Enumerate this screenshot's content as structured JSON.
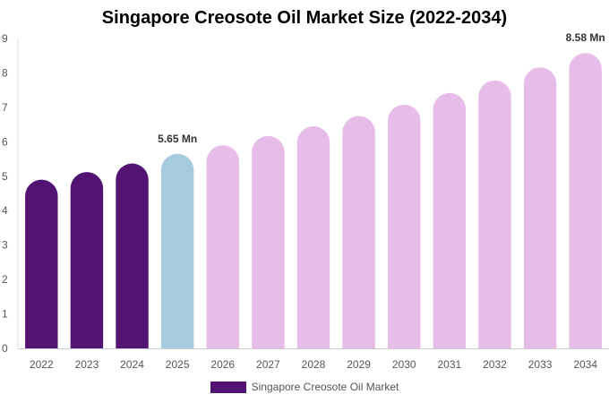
{
  "chart_data": {
    "type": "bar",
    "title": "Singapore Creosote Oil Market Size (2022-2034)",
    "categories": [
      "2022",
      "2023",
      "2024",
      "2025",
      "2026",
      "2027",
      "2028",
      "2029",
      "2030",
      "2031",
      "2032",
      "2033",
      "2034"
    ],
    "series": [
      {
        "name": "Singapore Creosote Oil Market",
        "values": [
          4.9,
          5.12,
          5.37,
          5.65,
          5.9,
          6.17,
          6.45,
          6.75,
          7.08,
          7.42,
          7.78,
          8.16,
          8.58
        ]
      }
    ],
    "ylim": [
      0,
      9
    ],
    "yticks": [
      "0",
      "1",
      "2",
      "3",
      "4",
      "5",
      "6",
      "7",
      "8",
      "9"
    ],
    "data_labels": [
      {
        "index": 3,
        "text": "5.65 Mn"
      },
      {
        "index": 12,
        "text": "8.58 Mn"
      }
    ],
    "bar_colors": {
      "historical": "#531372",
      "current": "#a4cbde",
      "forecast": "#e6bde8"
    },
    "historical_count": 3,
    "current_index": 3,
    "legend_position": "bottom",
    "grid": false
  }
}
